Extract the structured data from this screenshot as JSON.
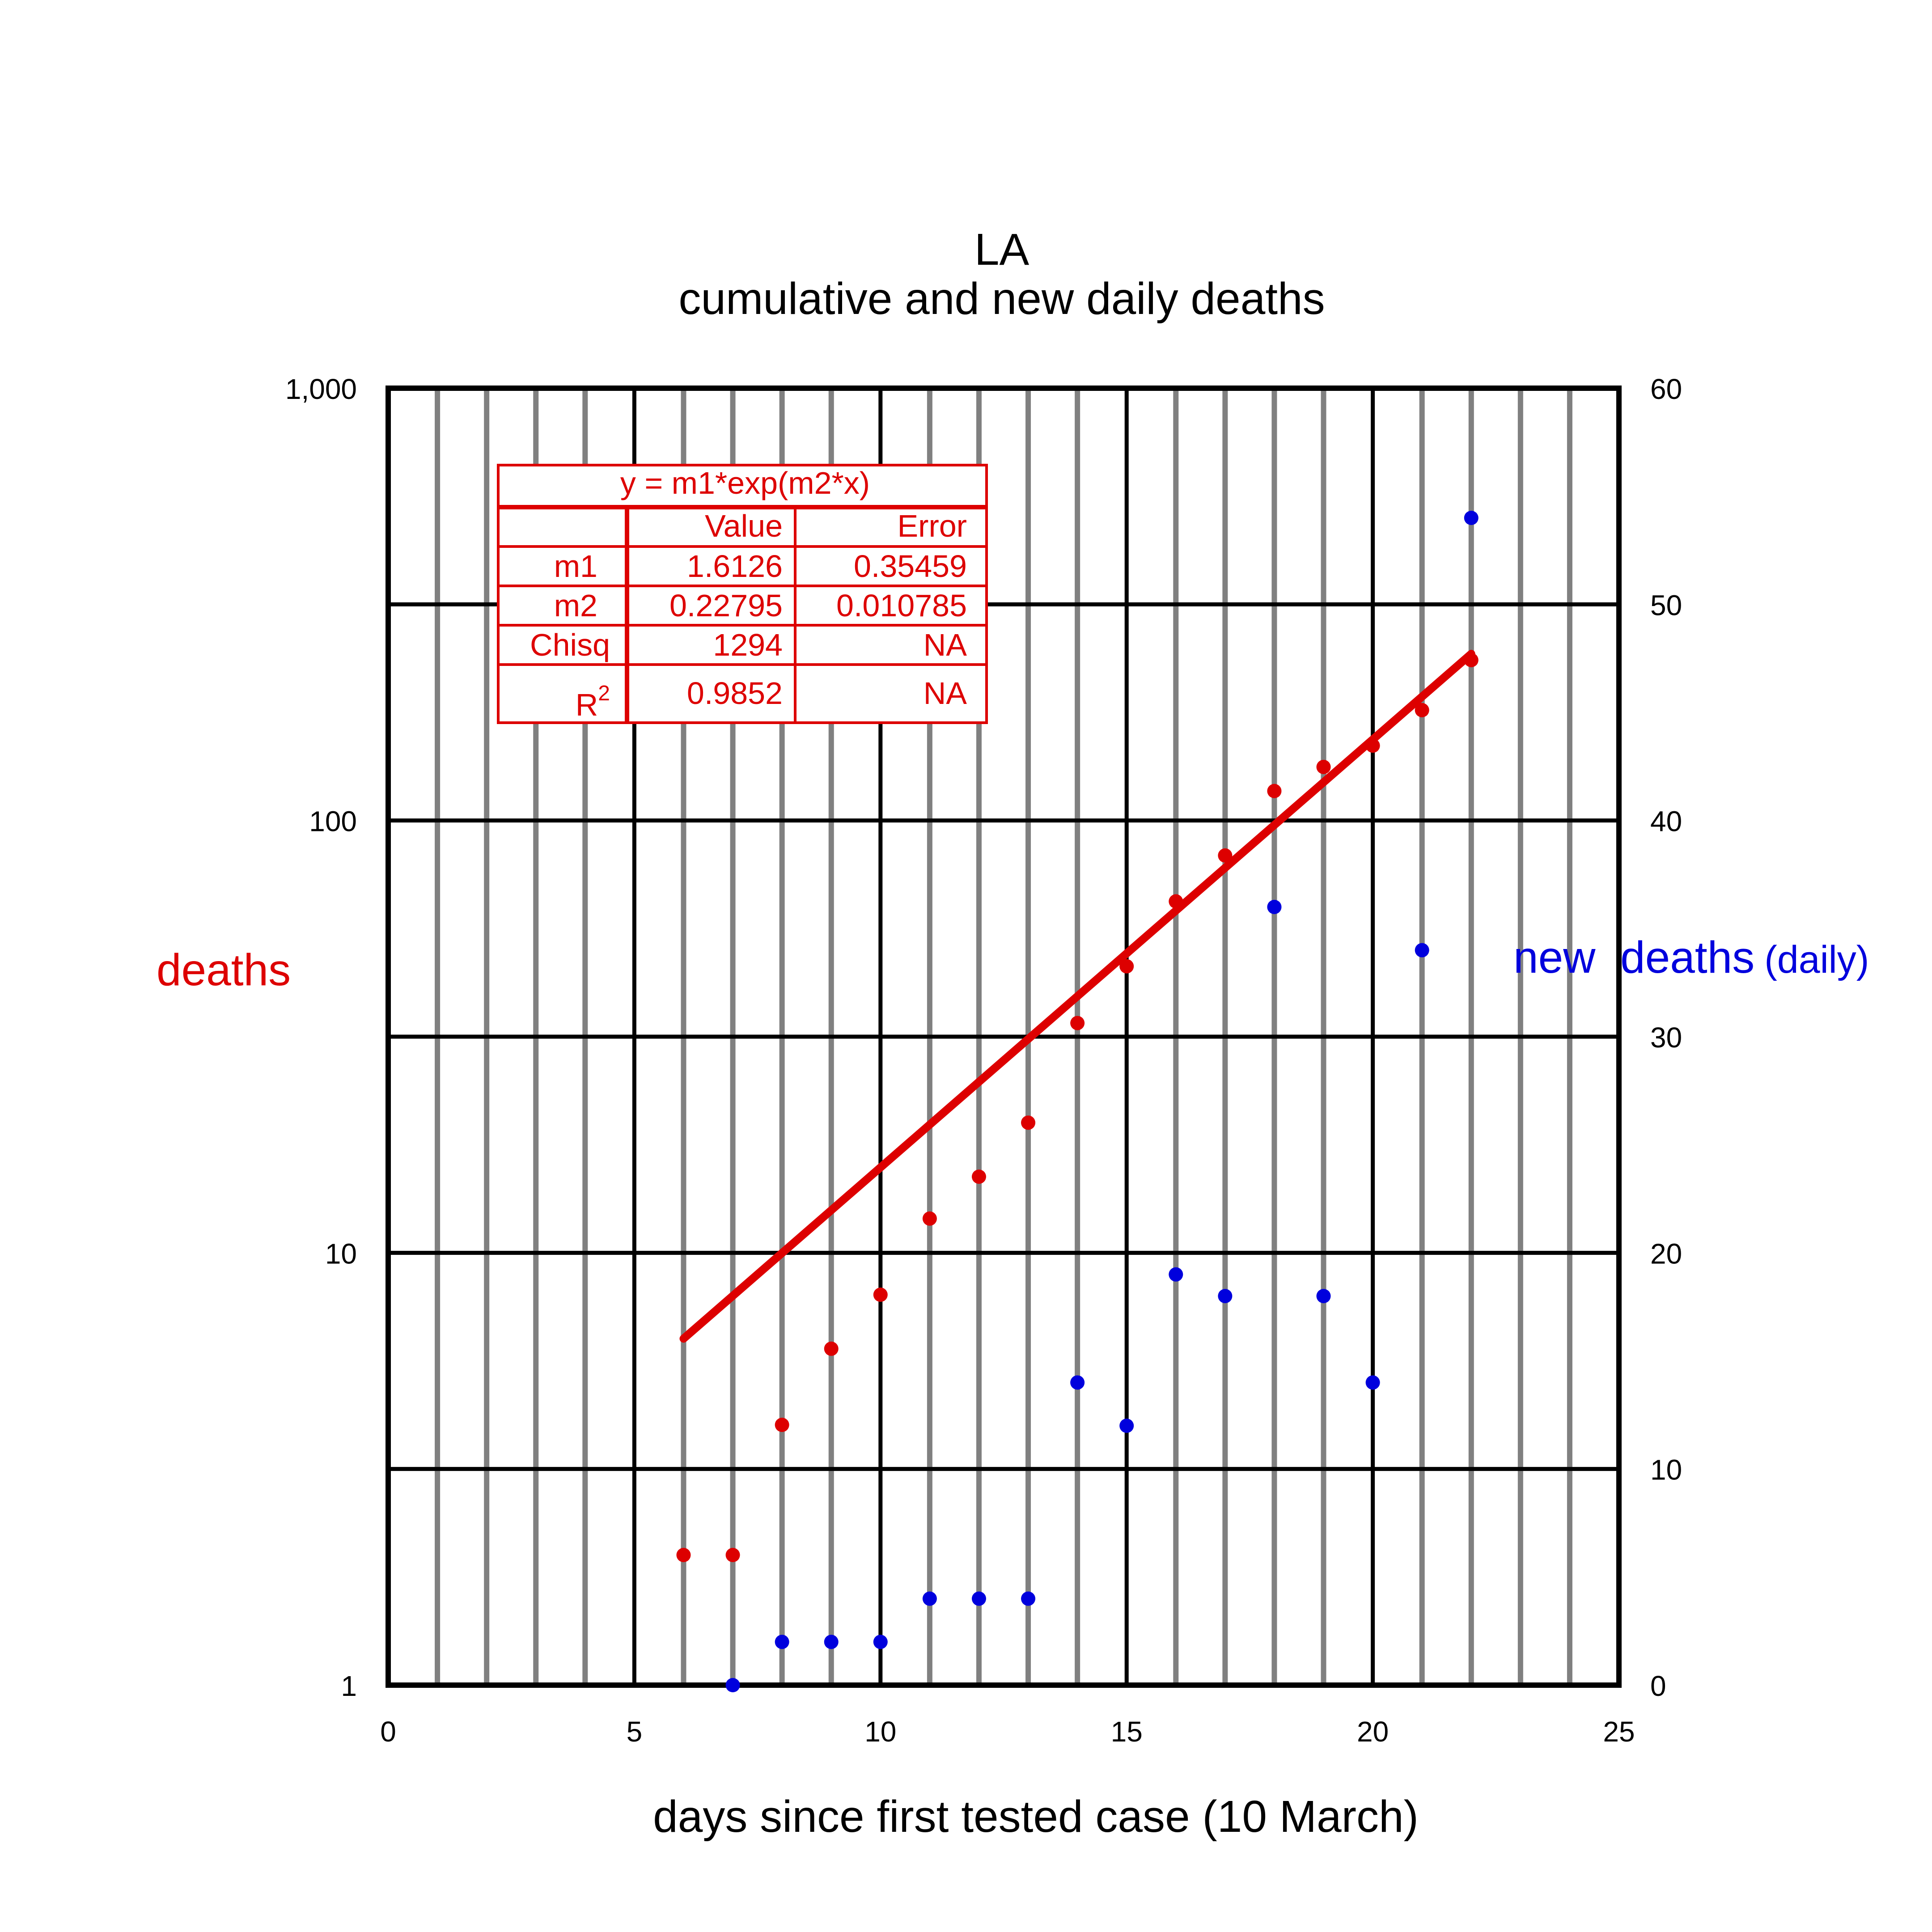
{
  "chart_data": {
    "type": "scatter",
    "title": "LA",
    "subtitle": "cumulative and new daily  deaths",
    "xlabel": "days since first tested case (10 March)",
    "ylabel_left": "deaths",
    "ylabel_right_main": "new  deaths",
    "ylabel_right_suffix": "(daily)",
    "xlim": [
      0,
      25
    ],
    "ylim_left": [
      1,
      1000
    ],
    "ylim_left_scale": "log",
    "ylim_right": [
      0,
      60
    ],
    "x_ticks": [
      "0",
      "5",
      "10",
      "15",
      "20",
      "25"
    ],
    "y_left_ticks": [
      "1",
      "10",
      "100",
      "1,000"
    ],
    "y_right_ticks": [
      "0",
      "10",
      "20",
      "30",
      "40",
      "50",
      "60"
    ],
    "grid": "on",
    "colors": {
      "cumulative": "#dd0000",
      "daily": "#0000dd",
      "fit": "#dd0000",
      "major_grid": "#000000",
      "minor_grid": "#808080"
    },
    "series": [
      {
        "axis": "left",
        "x": [
          6,
          7,
          8,
          9,
          10,
          11,
          12,
          13,
          14,
          15,
          16,
          17,
          18,
          19,
          20,
          21,
          22
        ],
        "values": [
          2,
          2,
          4,
          6,
          8,
          12,
          15,
          20,
          34,
          46,
          65,
          83,
          117,
          133,
          149,
          180,
          235
        ]
      },
      {
        "axis": "right",
        "x": [
          7,
          8,
          9,
          10,
          11,
          12,
          13,
          14,
          15,
          16,
          17,
          18,
          19,
          20,
          21,
          22
        ],
        "values": [
          0,
          2,
          2,
          2,
          4,
          4,
          4,
          14,
          12,
          19,
          18,
          36,
          18,
          14,
          34,
          54
        ]
      }
    ],
    "fit": {
      "equation": "y = m1*exp(m2*x)",
      "m1": 1.6126,
      "m2": 0.22795,
      "x_range": [
        6,
        22
      ],
      "table": {
        "headers": [
          "",
          "Value",
          "Error"
        ],
        "rows": [
          [
            "m1",
            "1.6126",
            "0.35459"
          ],
          [
            "m2",
            "0.22795",
            "0.010785"
          ],
          [
            "Chisq",
            "1294",
            "NA"
          ],
          [
            "R",
            "0.9852",
            "NA"
          ]
        ],
        "r_superscript": "2"
      }
    }
  }
}
